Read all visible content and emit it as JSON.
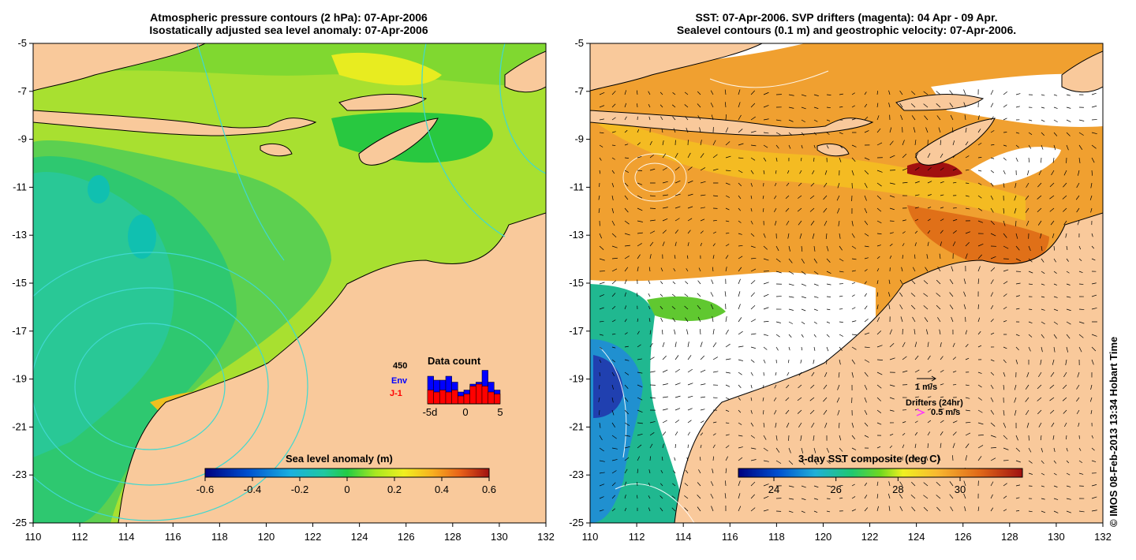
{
  "left_panel": {
    "title_line1": "Atmospheric pressure contours (2 hPa): 07-Apr-2006",
    "title_line2": "Isostatically adjusted sea level anomaly: 07-Apr-2006",
    "colorbar_label": "Sea level anomaly (m)",
    "colorbar_ticks": [
      "-0.6",
      "-0.4",
      "-0.2",
      "0",
      "0.2",
      "0.4",
      "0.6"
    ],
    "data_count": {
      "title": "Data count",
      "max_label": "450",
      "env_label": "Env",
      "j1_label": "J-1",
      "x_ticks": [
        "-5d",
        "0",
        "5"
      ],
      "env_values": [
        0.7,
        0.6,
        0.6,
        0.7,
        0.55,
        0.3,
        0.35,
        0.5,
        0.55,
        0.85,
        0.55,
        0.35
      ],
      "j1_values": [
        0.35,
        0.3,
        0.35,
        0.3,
        0.35,
        0.2,
        0.25,
        0.45,
        0.5,
        0.45,
        0.3,
        0.25
      ],
      "env_color": "#0000ff",
      "j1_color": "#ff0000"
    }
  },
  "right_panel": {
    "title_line1": "SST: 07-Apr-2006. SVP drifters (magenta): 04 Apr - 09 Apr.",
    "title_line2": "Sealevel contours (0.1 m) and geostrophic velocity: 07-Apr-2006.",
    "colorbar_label": "3-day SST composite (deg C)",
    "colorbar_ticks": [
      "24",
      "26",
      "28",
      "30"
    ],
    "velocity_legend": "1 m/s",
    "drifters_legend": "Drifters (24hr)",
    "drifters_speed": "0.5 m/s"
  },
  "axes": {
    "lon_ticks": [
      "110",
      "112",
      "114",
      "116",
      "118",
      "120",
      "122",
      "124",
      "126",
      "128",
      "130",
      "132"
    ],
    "lat_ticks": [
      "-5",
      "-7",
      "-9",
      "-11",
      "-13",
      "-15",
      "-17",
      "-19",
      "-21",
      "-23",
      "-25"
    ],
    "lon_range": [
      110,
      132
    ],
    "lat_range": [
      -25,
      -5
    ]
  },
  "credit": "© IMOS 08-Feb-2013 13:34 Hobart Time",
  "colors": {
    "land": "#f9c99b",
    "contour_cyan": "#40d8d0",
    "magenta": "#ff33ff"
  }
}
